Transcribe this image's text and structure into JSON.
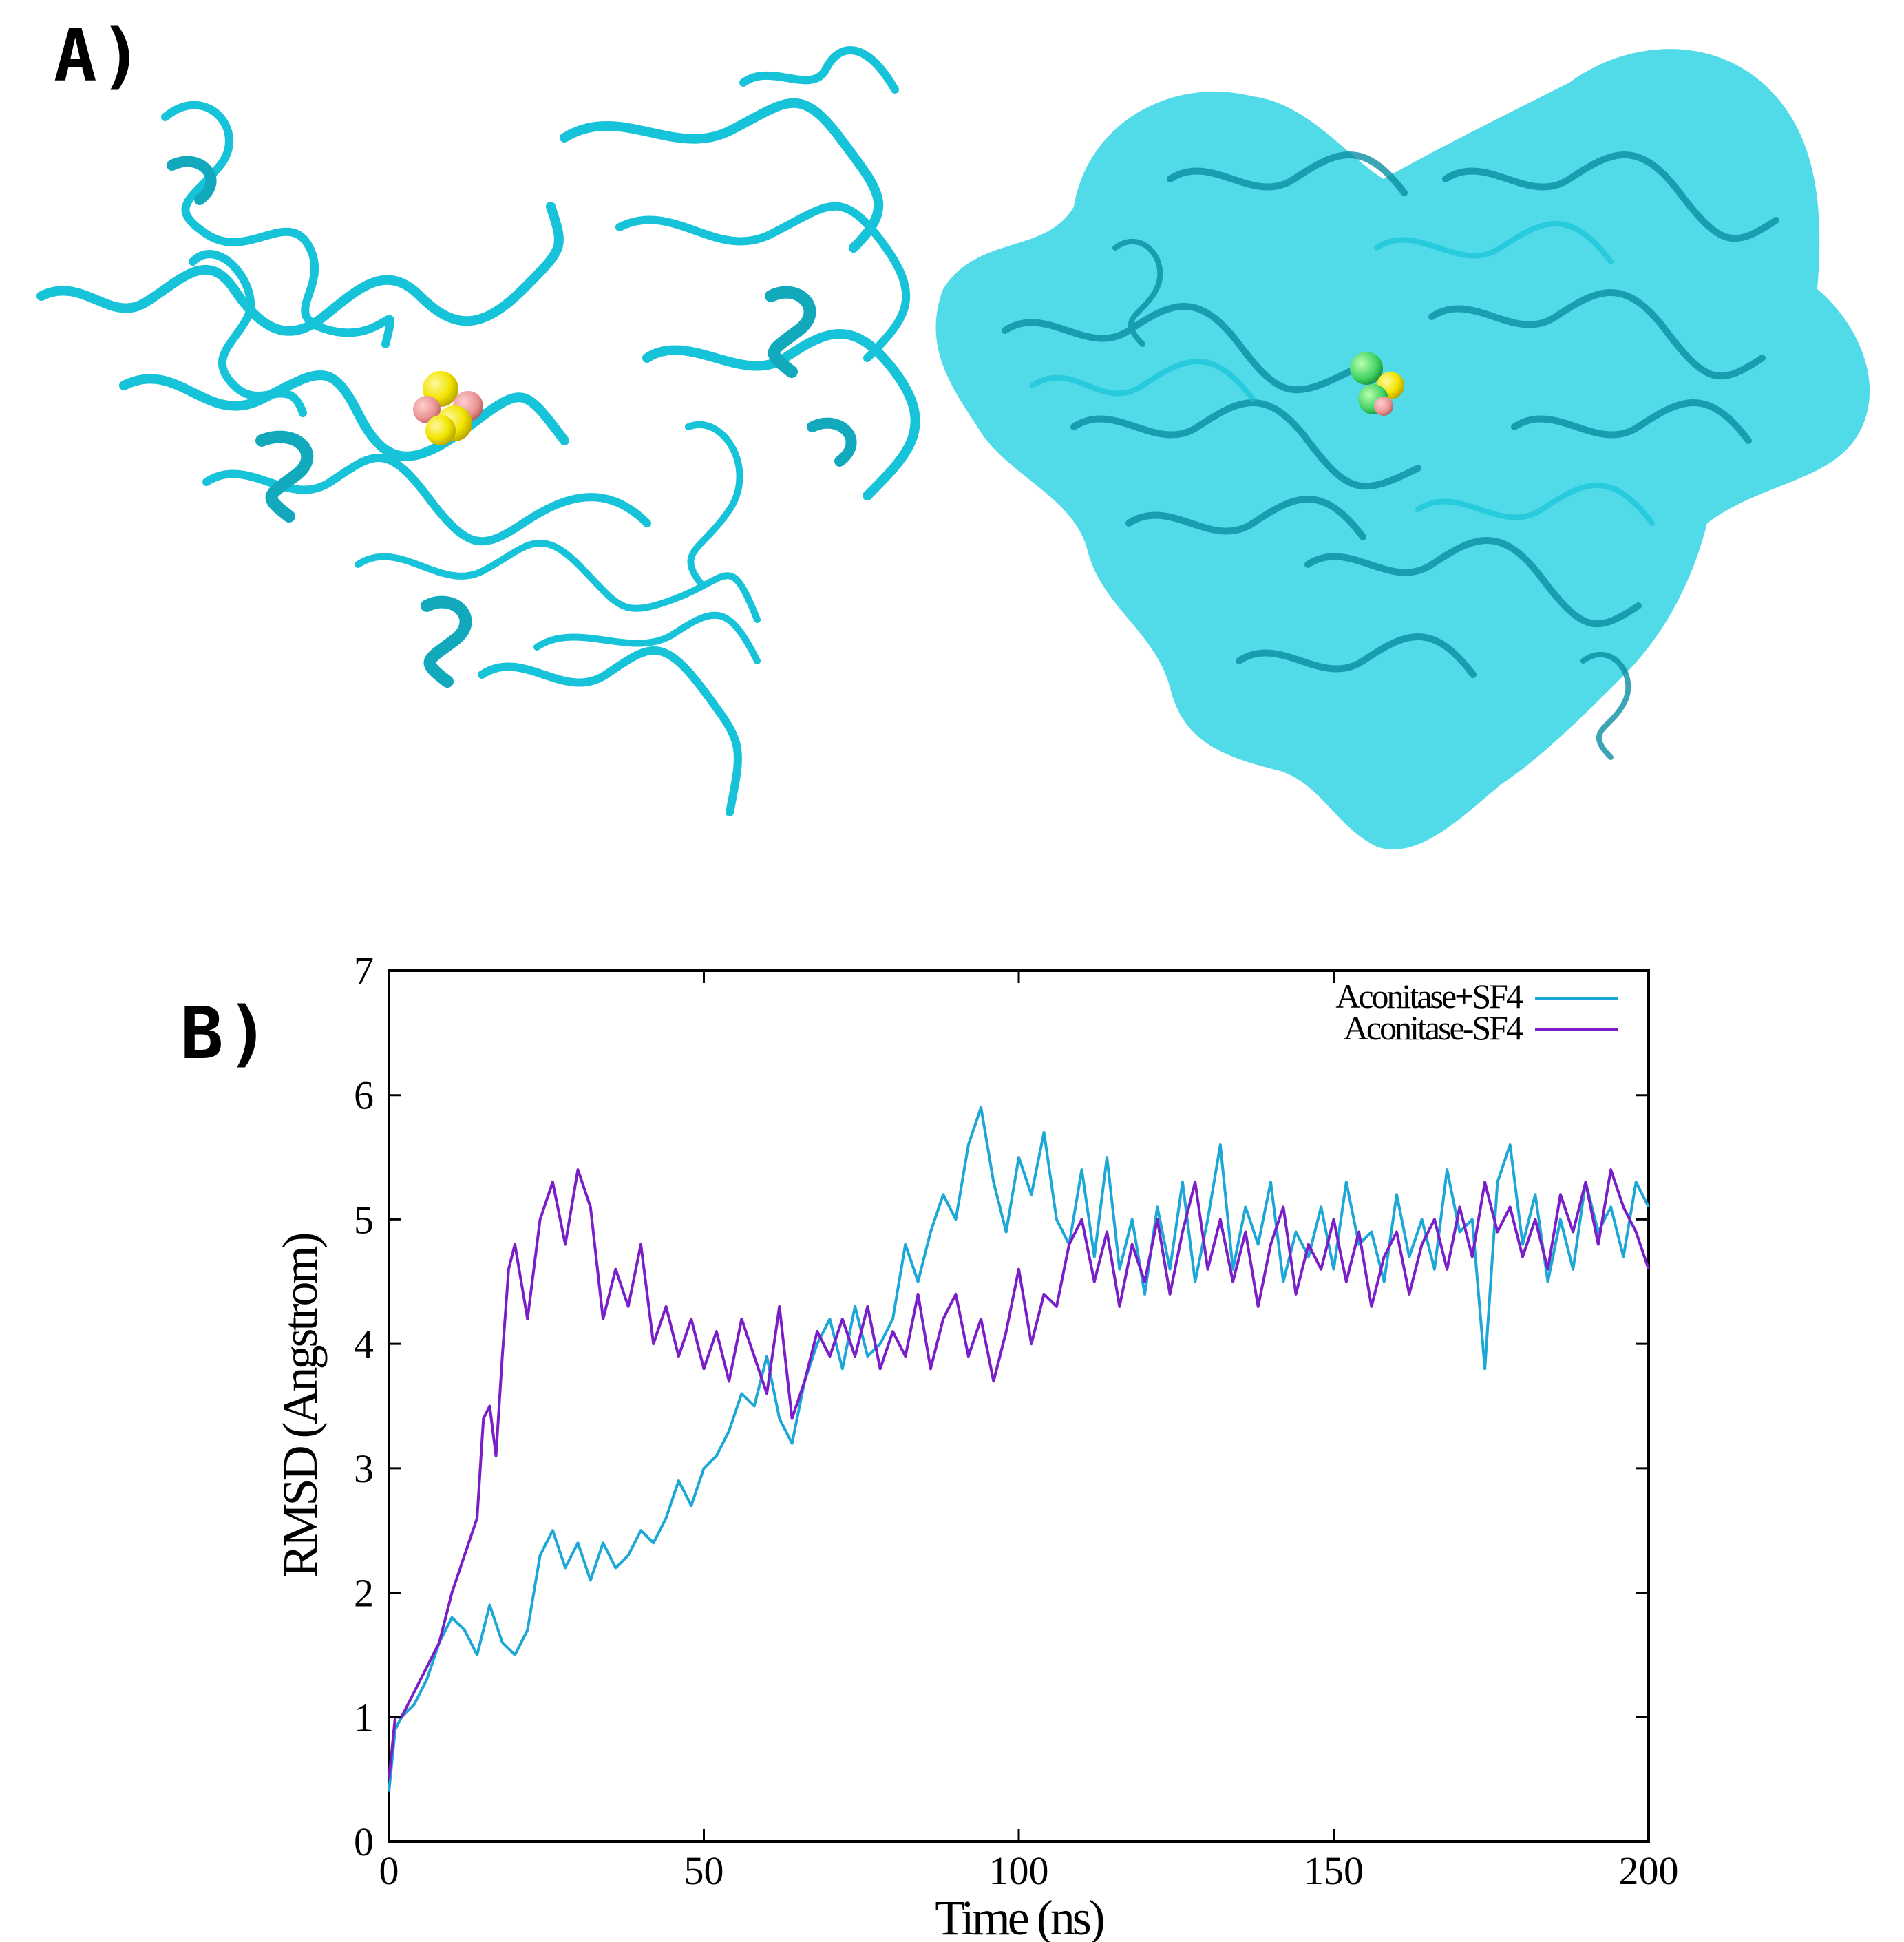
{
  "panel_labels": {
    "a": "A)",
    "b": "B)"
  },
  "colors": {
    "protein": "#17c3d8",
    "protein_dark": "#0b8fa3",
    "surface": "#33d3e4",
    "cluster_fe": "#f2e500",
    "cluster_s": "#e88f8f",
    "cluster_green": "#3ed060",
    "series_with": "#1ca7d6",
    "series_without": "#7a1ec7"
  },
  "structures": {
    "left": {
      "style": "cartoon",
      "ligand": "SF4 iron-sulfur cluster"
    },
    "right": {
      "style": "cartoon + transparent surface",
      "ligand": "SF4 iron-sulfur cluster"
    }
  },
  "chart_data": {
    "type": "line",
    "title": "",
    "xlabel": "Time (ns)",
    "ylabel": "RMSD (Angstrom)",
    "xlim": [
      0,
      200
    ],
    "ylim": [
      0,
      7
    ],
    "xticks": [
      0,
      50,
      100,
      150,
      200
    ],
    "yticks": [
      0,
      1,
      2,
      3,
      4,
      5,
      6,
      7
    ],
    "legend_position": "top-right",
    "grid": false,
    "series": [
      {
        "name": "Aconitase+SF4",
        "color": "#1ca7d6",
        "x": [
          0,
          1,
          2,
          4,
          6,
          8,
          10,
          12,
          14,
          16,
          18,
          20,
          22,
          24,
          26,
          28,
          30,
          32,
          34,
          36,
          38,
          40,
          42,
          44,
          46,
          48,
          50,
          52,
          54,
          56,
          58,
          60,
          62,
          64,
          66,
          68,
          70,
          72,
          74,
          76,
          78,
          80,
          82,
          84,
          86,
          88,
          90,
          92,
          94,
          96,
          98,
          100,
          102,
          104,
          106,
          108,
          110,
          112,
          114,
          116,
          118,
          120,
          122,
          124,
          126,
          128,
          130,
          132,
          134,
          136,
          138,
          140,
          142,
          144,
          146,
          148,
          150,
          152,
          154,
          156,
          158,
          160,
          162,
          164,
          166,
          168,
          170,
          172,
          174,
          176,
          178,
          180,
          182,
          184,
          186,
          188,
          190,
          192,
          194,
          196,
          198,
          200
        ],
        "values": [
          0.4,
          0.9,
          1.0,
          1.1,
          1.3,
          1.6,
          1.8,
          1.7,
          1.5,
          1.9,
          1.6,
          1.5,
          1.7,
          2.3,
          2.5,
          2.2,
          2.4,
          2.1,
          2.4,
          2.2,
          2.3,
          2.5,
          2.4,
          2.6,
          2.9,
          2.7,
          3.0,
          3.1,
          3.3,
          3.6,
          3.5,
          3.9,
          3.4,
          3.2,
          3.7,
          4.0,
          4.2,
          3.8,
          4.3,
          3.9,
          4.0,
          4.2,
          4.8,
          4.5,
          4.9,
          5.2,
          5.0,
          5.6,
          5.9,
          5.3,
          4.9,
          5.5,
          5.2,
          5.7,
          5.0,
          4.8,
          5.4,
          4.7,
          5.5,
          4.6,
          5.0,
          4.4,
          5.1,
          4.6,
          5.3,
          4.5,
          5.0,
          5.6,
          4.6,
          5.1,
          4.8,
          5.3,
          4.5,
          4.9,
          4.7,
          5.1,
          4.6,
          5.3,
          4.8,
          4.9,
          4.5,
          5.2,
          4.7,
          5.0,
          4.6,
          5.4,
          4.9,
          5.0,
          3.8,
          5.3,
          5.6,
          4.8,
          5.2,
          4.5,
          5.0,
          4.6,
          5.3,
          4.9,
          5.1,
          4.7,
          5.3,
          5.1
        ]
      },
      {
        "name": "Aconitase-SF4",
        "color": "#7a1ec7",
        "x": [
          0,
          1,
          2,
          4,
          6,
          8,
          10,
          12,
          14,
          15,
          16,
          17,
          18,
          19,
          20,
          22,
          24,
          26,
          28,
          30,
          32,
          34,
          36,
          38,
          40,
          42,
          44,
          46,
          48,
          50,
          52,
          54,
          56,
          58,
          60,
          62,
          64,
          66,
          68,
          70,
          72,
          74,
          76,
          78,
          80,
          82,
          84,
          86,
          88,
          90,
          92,
          94,
          96,
          98,
          100,
          102,
          104,
          106,
          108,
          110,
          112,
          114,
          116,
          118,
          120,
          122,
          124,
          126,
          128,
          130,
          132,
          134,
          136,
          138,
          140,
          142,
          144,
          146,
          148,
          150,
          152,
          154,
          156,
          158,
          160,
          162,
          164,
          166,
          168,
          170,
          172,
          174,
          176,
          178,
          180,
          182,
          184,
          186,
          188,
          190,
          192,
          194,
          196,
          198,
          200
        ],
        "values": [
          0.5,
          1.0,
          1.0,
          1.2,
          1.4,
          1.6,
          2.0,
          2.3,
          2.6,
          3.4,
          3.5,
          3.1,
          3.9,
          4.6,
          4.8,
          4.2,
          5.0,
          5.3,
          4.8,
          5.4,
          5.1,
          4.2,
          4.6,
          4.3,
          4.8,
          4.0,
          4.3,
          3.9,
          4.2,
          3.8,
          4.1,
          3.7,
          4.2,
          3.9,
          3.6,
          4.3,
          3.4,
          3.7,
          4.1,
          3.9,
          4.2,
          3.9,
          4.3,
          3.8,
          4.1,
          3.9,
          4.4,
          3.8,
          4.2,
          4.4,
          3.9,
          4.2,
          3.7,
          4.1,
          4.6,
          4.0,
          4.4,
          4.3,
          4.8,
          5.0,
          4.5,
          4.9,
          4.3,
          4.8,
          4.5,
          5.0,
          4.4,
          4.9,
          5.3,
          4.6,
          5.0,
          4.5,
          4.9,
          4.3,
          4.8,
          5.1,
          4.4,
          4.8,
          4.6,
          5.0,
          4.5,
          4.9,
          4.3,
          4.7,
          4.9,
          4.4,
          4.8,
          5.0,
          4.6,
          5.1,
          4.7,
          5.3,
          4.9,
          5.1,
          4.7,
          5.0,
          4.6,
          5.2,
          4.9,
          5.3,
          4.8,
          5.4,
          5.1,
          4.9,
          4.6
        ]
      }
    ]
  }
}
